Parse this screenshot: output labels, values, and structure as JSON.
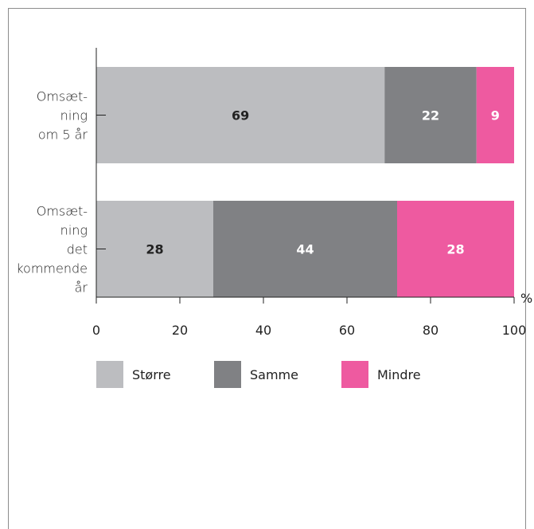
{
  "chart_data": {
    "type": "bar",
    "orientation": "horizontal",
    "stacked": true,
    "categories": [
      [
        "Omsæt-",
        "ning",
        "om 5 år"
      ],
      [
        "Omsæt-",
        "ning",
        "det",
        "kommende",
        "år"
      ]
    ],
    "series": [
      {
        "name": "Større",
        "values": [
          69,
          28
        ],
        "color": "#bcbdc0",
        "label_color": "#222222"
      },
      {
        "name": "Samme",
        "values": [
          22,
          44
        ],
        "color": "#808184",
        "label_color": "#ffffff"
      },
      {
        "name": "Mindre",
        "values": [
          9,
          28
        ],
        "color": "#ee5aa0",
        "label_color": "#ffffff"
      }
    ],
    "xlim": [
      0,
      100
    ],
    "xticks": [
      "0",
      "20",
      "40",
      "60",
      "80",
      "100"
    ],
    "unit": "%",
    "grid": false,
    "legend_position": "bottom-left"
  }
}
